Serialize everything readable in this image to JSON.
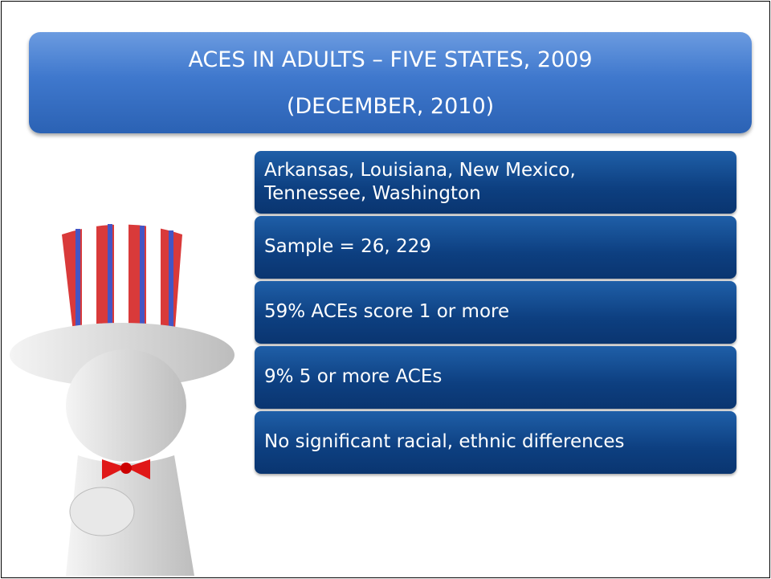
{
  "slide": {
    "title": {
      "line1": "ACES IN ADULTS – FIVE STATES, 2009",
      "line2": "(DECEMBER, 2010)"
    },
    "items": [
      "Arkansas, Louisiana, New Mexico, Tennessee, Washington",
      "Sample = 26, 229",
      "59% ACEs score 1 or more",
      "9% 5 or more ACEs",
      "No significant racial, ethnic differences"
    ]
  }
}
